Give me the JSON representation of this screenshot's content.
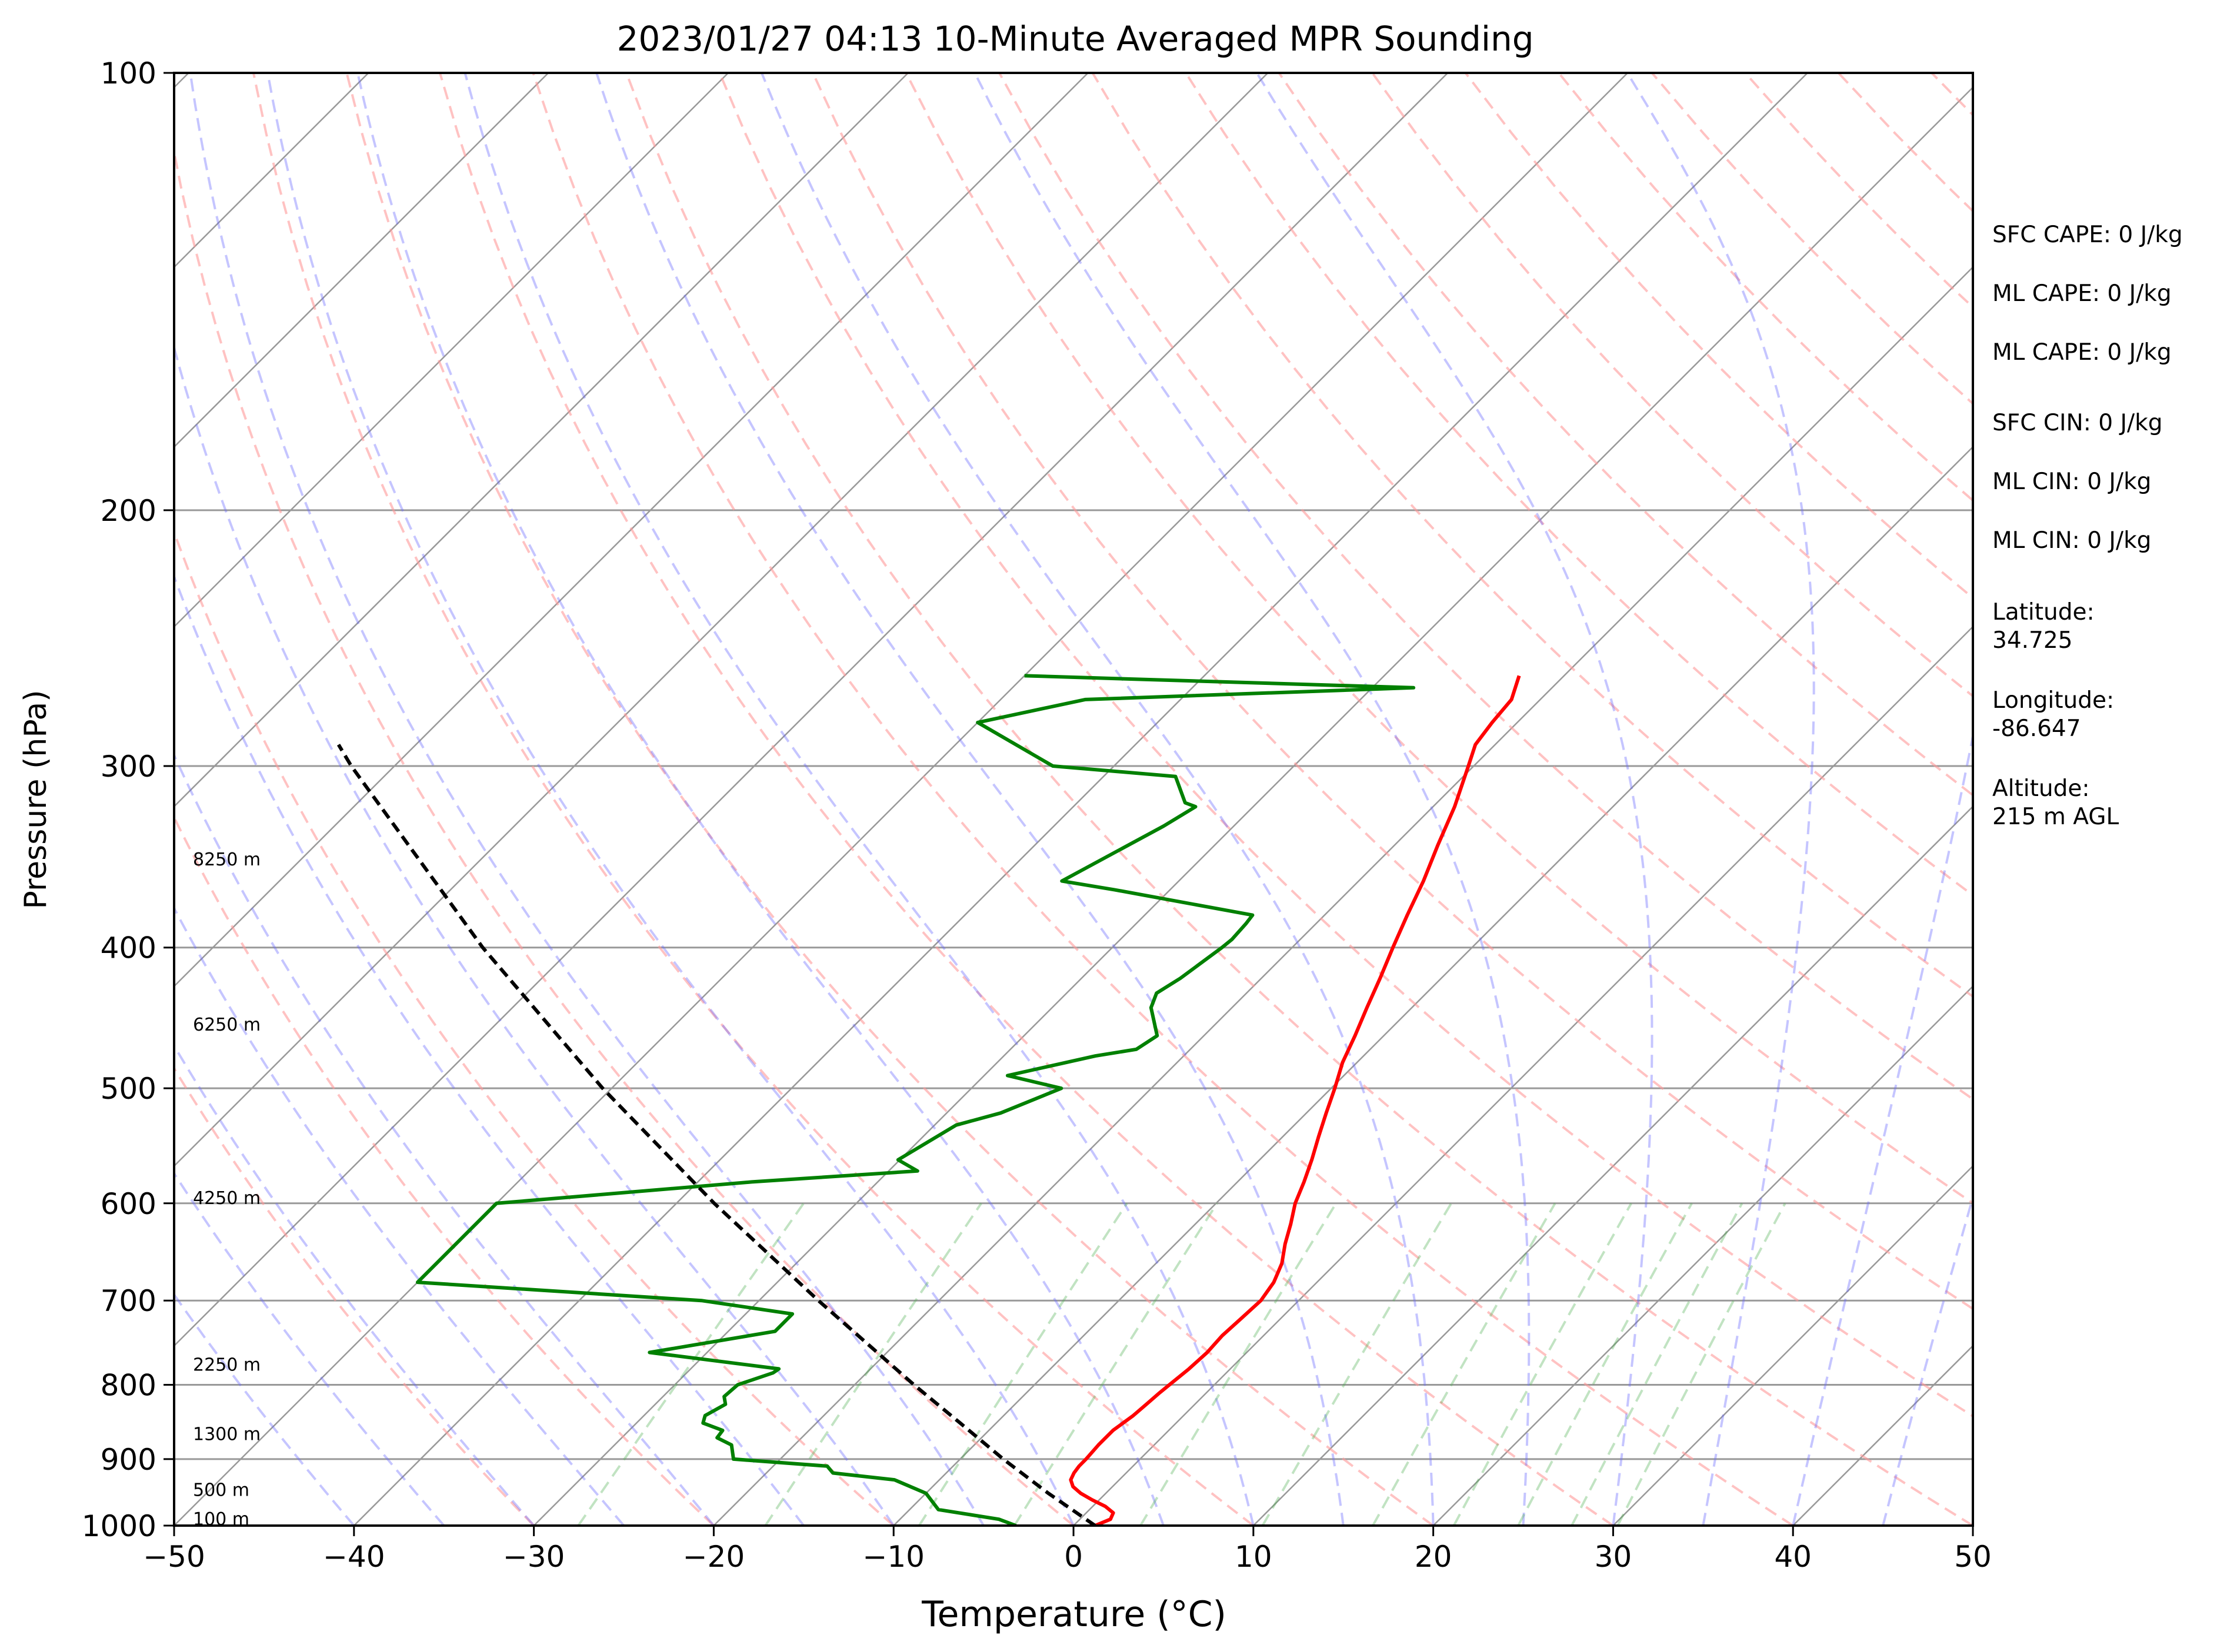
{
  "chart_data": {
    "type": "line",
    "subtype": "skew-t log-p",
    "title": "2023/01/27 04:13 10-Minute Averaged MPR Sounding",
    "xlabel": "Temperature (°C)",
    "ylabel": "Pressure (hPa)",
    "xlim": [
      -50,
      50
    ],
    "ylim": [
      1000,
      100
    ],
    "yscale": "log",
    "x_ticks": [
      -50,
      -40,
      -30,
      -20,
      -10,
      0,
      10,
      20,
      30,
      40,
      50
    ],
    "x_tick_labels": [
      "−50",
      "−40",
      "−30",
      "−20",
      "−10",
      "0",
      "10",
      "20",
      "30",
      "40",
      "50"
    ],
    "y_ticks": [
      1000,
      900,
      800,
      700,
      600,
      500,
      400,
      300,
      200,
      100
    ],
    "y_tick_labels": [
      "1000",
      "900",
      "800",
      "700",
      "600",
      "500",
      "400",
      "300",
      "200",
      "100"
    ],
    "grid": "horizontal at pressure ticks; skewed isotherms every 10 °C",
    "colors": {
      "temperature": "#ff0000",
      "dewpoint": "#008000",
      "parcel": "#000000",
      "dry_adiabats": "#ff9999",
      "moist_adiabats": "#6666ff",
      "mixing_ratio": "#4caf50",
      "isotherms": "#999999",
      "pressure_grid": "#999999"
    },
    "series": [
      {
        "key": "temperature",
        "p": [
          1000,
          990,
          980,
          970,
          960,
          950,
          940,
          930,
          920,
          910,
          900,
          880,
          860,
          840,
          825,
          810,
          800,
          780,
          760,
          740,
          720,
          700,
          680,
          660,
          640,
          620,
          600,
          580,
          560,
          540,
          520,
          500,
          480,
          460,
          440,
          420,
          400,
          380,
          360,
          340,
          320,
          300,
          290,
          280,
          270,
          260
        ],
        "t": [
          1.2,
          1.7,
          1.5,
          0.7,
          -0.4,
          -1.4,
          -2.2,
          -2.7,
          -2.9,
          -3.0,
          -3.0,
          -3.1,
          -3.1,
          -2.8,
          -2.7,
          -2.6,
          -2.5,
          -2.3,
          -2.2,
          -2.3,
          -2.2,
          -2.1,
          -2.4,
          -3.0,
          -3.9,
          -4.7,
          -5.6,
          -6.3,
          -7.1,
          -8.0,
          -8.9,
          -9.8,
          -10.8,
          -11.6,
          -12.5,
          -13.4,
          -14.4,
          -15.4,
          -16.4,
          -17.6,
          -18.8,
          -20.3,
          -21.1,
          -21.4,
          -21.6,
          -22.5
        ]
      },
      {
        "key": "dewpoint",
        "p": [
          1000,
          990,
          975,
          950,
          930,
          920,
          910,
          900,
          880,
          870,
          860,
          850,
          840,
          825,
          815,
          800,
          785,
          780,
          760,
          735,
          715,
          700,
          680,
          600,
          580,
          570,
          560,
          530,
          520,
          500,
          490,
          475,
          470,
          460,
          440,
          430,
          420,
          400,
          395,
          385,
          380,
          365,
          360,
          330,
          320,
          318,
          305,
          300,
          280,
          270,
          265,
          260
        ],
        "td": [
          -3.2,
          -4.5,
          -8.4,
          -10.0,
          -12.5,
          -16.3,
          -17.0,
          -22.6,
          -23.5,
          -24.7,
          -24.8,
          -26.3,
          -26.6,
          -26.1,
          -26.6,
          -26.5,
          -25.2,
          -25.1,
          -33.2,
          -27.4,
          -27.4,
          -33.2,
          -50.0,
          -50.0,
          -37.0,
          -28.4,
          -30.1,
          -28.8,
          -27.0,
          -25.0,
          -28.7,
          -24.9,
          -23.0,
          -22.6,
          -24.5,
          -25.0,
          -24.5,
          -23.9,
          -23.8,
          -23.9,
          -24.0,
          -33.1,
          -36.5,
          -33.9,
          -33.2,
          -34.0,
          -36.0,
          -43.4,
          -50.0,
          -45.3,
          -27.7,
          -50.0
        ]
      },
      {
        "key": "parcel",
        "p": [
          1000,
          950,
          900,
          850,
          800,
          700,
          600,
          500,
          400,
          300,
          290
        ],
        "t": [
          1.2,
          -3.2,
          -7.6,
          -12.0,
          -16.7,
          -26.7,
          -37.9,
          -50.5,
          -65.0,
          -82.4,
          -84.3
        ]
      }
    ],
    "height_annotations": [
      {
        "label": "100 m",
        "p": 990
      },
      {
        "label": "500 m",
        "p": 945
      },
      {
        "label": "1300 m",
        "p": 865
      },
      {
        "label": "2250 m",
        "p": 775
      },
      {
        "label": "4250 m",
        "p": 595
      },
      {
        "label": "6250 m",
        "p": 452
      },
      {
        "label": "8250 m",
        "p": 348
      }
    ],
    "side_annotations": [
      "SFC CAPE: 0 J/kg",
      "ML CAPE: 0 J/kg",
      "ML CAPE: 0 J/kg",
      "SFC CIN: 0 J/kg",
      "ML CIN: 0 J/kg",
      "ML CIN: 0 J/kg",
      "Latitude:\n34.725",
      "Longitude:\n-86.647",
      "Altitude:\n215 m AGL"
    ]
  }
}
